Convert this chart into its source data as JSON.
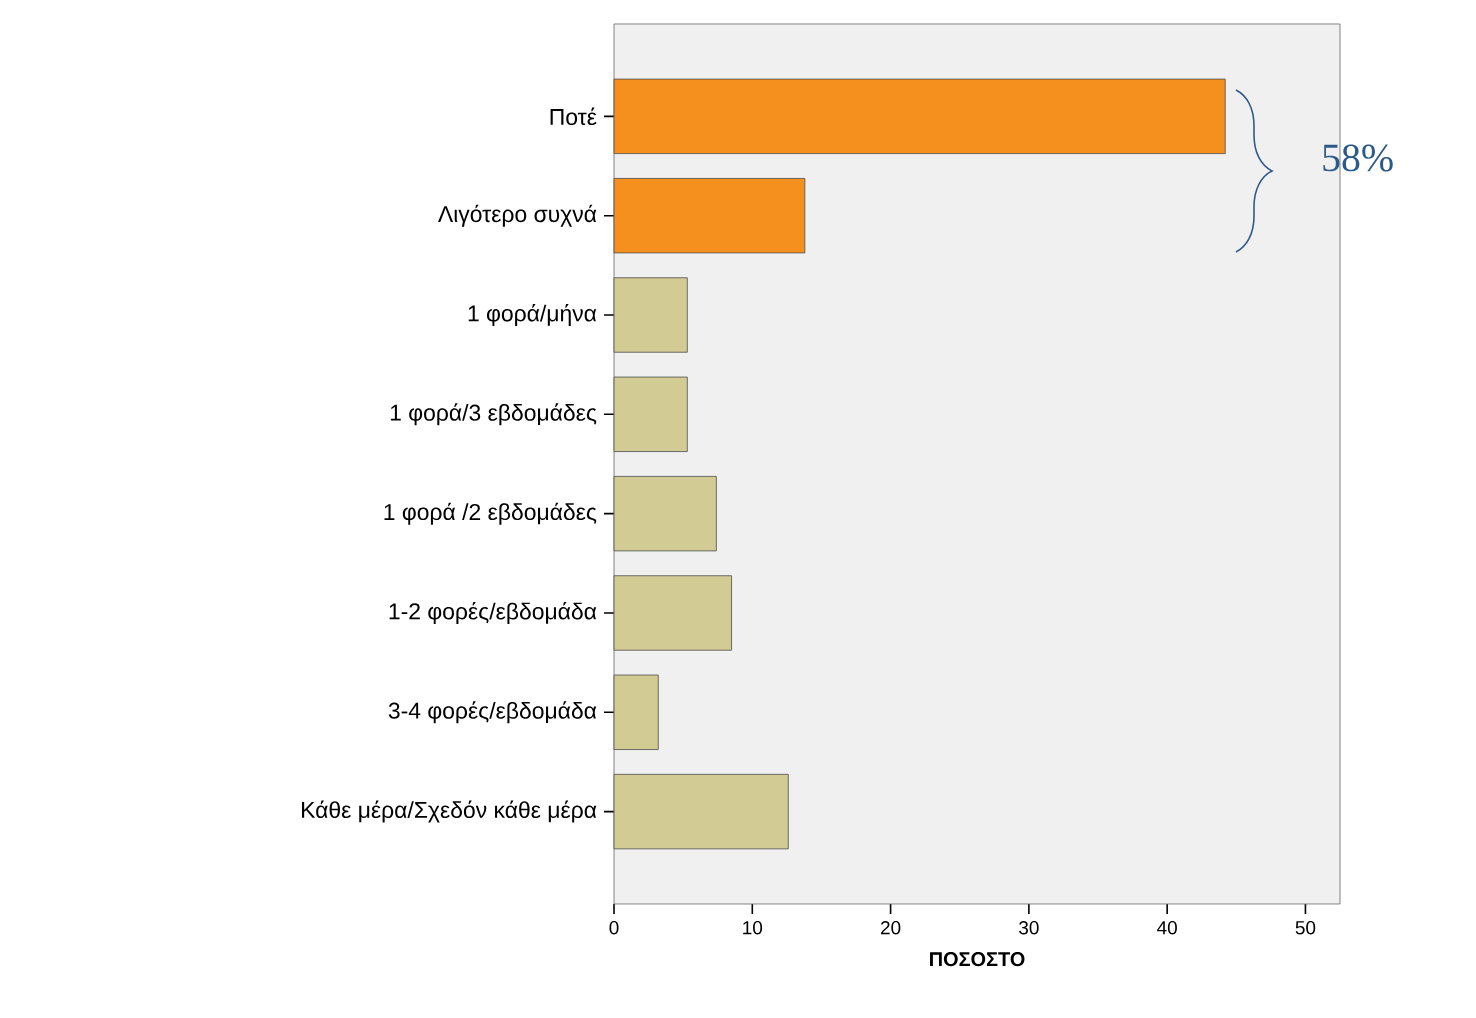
{
  "chart_data": {
    "type": "bar",
    "orientation": "horizontal",
    "xlabel": "ΠΟΣΟΣΤΟ",
    "categories": [
      "Ποτέ",
      "Λιγότερο συχνά",
      "1 φορά/μήνα",
      "1 φορά/3 εβδομάδες",
      "1 φορά /2 εβδομάδες",
      "1-2 φορές/εβδομάδα",
      "3-4 φορές/εβδομάδα",
      "Κάθε μέρα/Σχεδόν κάθε μέρα"
    ],
    "values": [
      44.2,
      13.8,
      5.3,
      5.3,
      7.4,
      8.5,
      3.2,
      12.6
    ],
    "colors": [
      "#f5901e",
      "#f5901e",
      "#d2cc94",
      "#d2cc94",
      "#d2cc94",
      "#d2cc94",
      "#d2cc94",
      "#d2cc94"
    ],
    "xlim": [
      0,
      52.5
    ],
    "xticks": [
      0,
      10,
      20,
      30,
      40,
      50
    ],
    "grid": false,
    "annotations": [
      "58%"
    ]
  }
}
